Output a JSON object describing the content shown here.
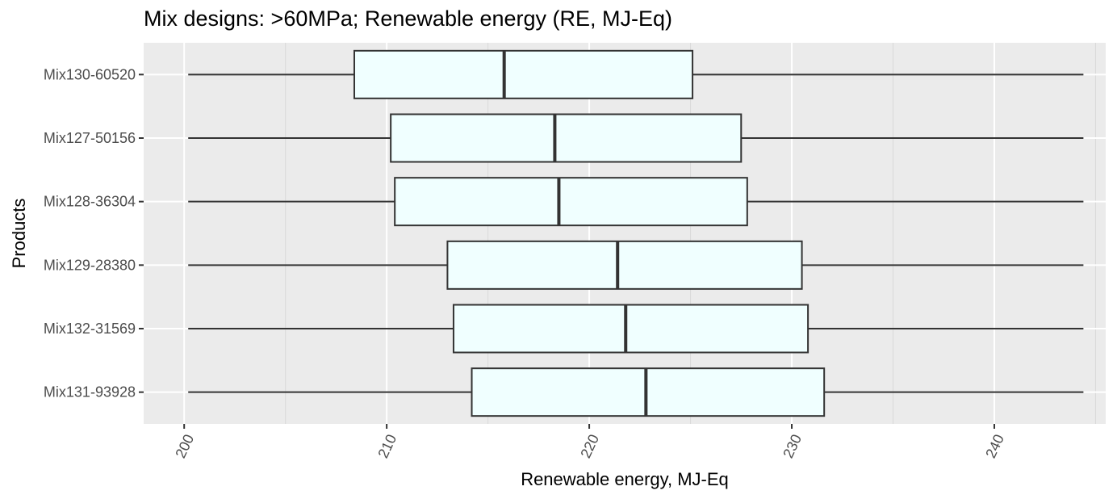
{
  "chart_data": {
    "type": "boxplot",
    "orientation": "horizontal",
    "title": "Mix designs: >60MPa; Renewable energy (RE, MJ-Eq)",
    "xlabel": "Renewable energy, MJ-Eq",
    "ylabel": "Products",
    "xlim": [
      198,
      245.5
    ],
    "x_ticks": [
      200,
      210,
      220,
      230,
      240
    ],
    "x_minor_ticks": [
      205,
      215,
      225,
      235,
      245
    ],
    "grid": true,
    "categories": [
      "Mix130-60520",
      "Mix127-50156",
      "Mix128-36304",
      "Mix129-28380",
      "Mix132-31569",
      "Mix131-93928"
    ],
    "boxes": [
      {
        "label": "Mix130-60520",
        "whisker_low": 200.2,
        "q1": 208.4,
        "median": 215.8,
        "q3": 225.1,
        "whisker_high": 244.4
      },
      {
        "label": "Mix127-50156",
        "whisker_low": 200.2,
        "q1": 210.2,
        "median": 218.3,
        "q3": 227.5,
        "whisker_high": 244.4
      },
      {
        "label": "Mix128-36304",
        "whisker_low": 200.2,
        "q1": 210.4,
        "median": 218.5,
        "q3": 227.8,
        "whisker_high": 244.4
      },
      {
        "label": "Mix129-28380",
        "whisker_low": 200.2,
        "q1": 213.0,
        "median": 221.4,
        "q3": 230.5,
        "whisker_high": 244.4
      },
      {
        "label": "Mix132-31569",
        "whisker_low": 200.2,
        "q1": 213.3,
        "median": 221.8,
        "q3": 230.8,
        "whisker_high": 244.4
      },
      {
        "label": "Mix131-93928",
        "whisker_low": 200.2,
        "q1": 214.2,
        "median": 222.8,
        "q3": 231.6,
        "whisker_high": 244.4
      }
    ],
    "colors": {
      "panel_background": "#ebebeb",
      "grid_major": "#ffffff",
      "grid_minor": "#d9d9d9",
      "box_fill": "#f0ffff",
      "box_line": "#333333",
      "tick_label": "#4d4d4d"
    }
  }
}
